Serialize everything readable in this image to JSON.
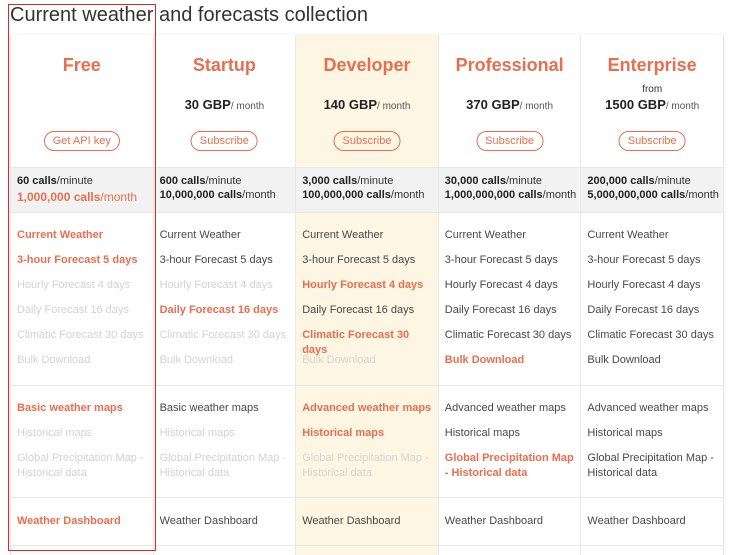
{
  "title": "Current weather and forecasts collection",
  "plans": [
    {
      "name": "Free",
      "button": "Get API key",
      "calls_minute": "60 calls",
      "calls_minute_unit": "/minute",
      "calls_month": "1,000,000 calls",
      "calls_month_unit": "/month",
      "calls_month_style": "highlight",
      "features": [
        {
          "text": "Current Weather",
          "style": "highlight"
        },
        {
          "text": "3-hour Forecast 5 days",
          "style": "highlight"
        },
        {
          "text": "Hourly Forecast 4 days",
          "style": "disabled"
        },
        {
          "text": "Daily Forecast 16 days",
          "style": "disabled"
        },
        {
          "text": "Climatic Forecast 30 days",
          "style": "disabled"
        },
        {
          "text": "Bulk Download",
          "style": "disabled"
        }
      ],
      "maps": [
        {
          "text": "Basic weather maps",
          "style": "highlight"
        },
        {
          "text": "Historical maps",
          "style": "disabled"
        },
        {
          "text": "Global Precipitation Map - Historical data",
          "style": "disabled"
        }
      ],
      "dashboard": {
        "text": "Weather Dashboard",
        "style": "highlight"
      }
    },
    {
      "name": "Startup",
      "price": "30 GBP",
      "price_unit": "/ month",
      "button": "Subscribe",
      "calls_minute": "600 calls",
      "calls_minute_unit": "/minute",
      "calls_month": "10,000,000 calls",
      "calls_month_unit": "/month",
      "calls_month_style": "normal",
      "features": [
        {
          "text": "Current Weather",
          "style": "normal"
        },
        {
          "text": "3-hour Forecast 5 days",
          "style": "normal"
        },
        {
          "text": "Hourly Forecast 4 days",
          "style": "disabled"
        },
        {
          "text": "Daily Forecast 16 days",
          "style": "highlight"
        },
        {
          "text": "Climatic Forecast 30 days",
          "style": "disabled"
        },
        {
          "text": "Bulk Download",
          "style": "disabled"
        }
      ],
      "maps": [
        {
          "text": "Basic weather maps",
          "style": "normal"
        },
        {
          "text": "Historical maps",
          "style": "disabled"
        },
        {
          "text": "Global Precipitation Map - Historical data",
          "style": "disabled"
        }
      ],
      "dashboard": {
        "text": "Weather Dashboard",
        "style": "normal"
      }
    },
    {
      "name": "Developer",
      "price": "140 GBP",
      "price_unit": "/ month",
      "button": "Subscribe",
      "calls_minute": "3,000 calls",
      "calls_minute_unit": "/minute",
      "calls_month": "100,000,000 calls",
      "calls_month_unit": "/month",
      "calls_month_style": "normal",
      "features": [
        {
          "text": "Current Weather",
          "style": "normal"
        },
        {
          "text": "3-hour Forecast 5 days",
          "style": "normal"
        },
        {
          "text": "Hourly Forecast 4 days",
          "style": "highlight"
        },
        {
          "text": "Daily Forecast 16 days",
          "style": "normal"
        },
        {
          "text": "Climatic Forecast 30 days",
          "style": "highlight"
        },
        {
          "text": "Bulk Download",
          "style": "disabled"
        }
      ],
      "maps": [
        {
          "text": "Advanced weather maps",
          "style": "highlight"
        },
        {
          "text": "Historical maps",
          "style": "highlight"
        },
        {
          "text": "Global Precipitation Map - Historical data",
          "style": "disabled"
        }
      ],
      "dashboard": {
        "text": "Weather Dashboard",
        "style": "normal"
      }
    },
    {
      "name": "Professional",
      "price": "370 GBP",
      "price_unit": "/ month",
      "button": "Subscribe",
      "calls_minute": "30,000 calls",
      "calls_minute_unit": "/minute",
      "calls_month": "1,000,000,000 calls",
      "calls_month_unit": "/month",
      "calls_month_style": "normal",
      "features": [
        {
          "text": "Current Weather",
          "style": "normal"
        },
        {
          "text": "3-hour Forecast 5 days",
          "style": "normal"
        },
        {
          "text": "Hourly Forecast 4 days",
          "style": "normal"
        },
        {
          "text": "Daily Forecast 16 days",
          "style": "normal"
        },
        {
          "text": "Climatic Forecast 30 days",
          "style": "normal"
        },
        {
          "text": "Bulk Download",
          "style": "highlight"
        }
      ],
      "maps": [
        {
          "text": "Advanced weather maps",
          "style": "normal"
        },
        {
          "text": "Historical maps",
          "style": "normal"
        },
        {
          "text": "Global Precipitation Map - Historical data",
          "style": "highlight"
        }
      ],
      "dashboard": {
        "text": "Weather Dashboard",
        "style": "normal"
      }
    },
    {
      "name": "Enterprise",
      "from": "from",
      "price": "1500 GBP",
      "price_unit": "/ month",
      "button": "Subscribe",
      "calls_minute": "200,000 calls",
      "calls_minute_unit": "/minute",
      "calls_month": "5,000,000,000 calls",
      "calls_month_unit": "/month",
      "calls_month_style": "normal",
      "features": [
        {
          "text": "Current Weather",
          "style": "normal"
        },
        {
          "text": "3-hour Forecast 5 days",
          "style": "normal"
        },
        {
          "text": "Hourly Forecast 4 days",
          "style": "normal"
        },
        {
          "text": "Daily Forecast 16 days",
          "style": "normal"
        },
        {
          "text": "Climatic Forecast 30 days",
          "style": "normal"
        },
        {
          "text": "Bulk Download",
          "style": "normal"
        }
      ],
      "maps": [
        {
          "text": "Advanced weather maps",
          "style": "normal"
        },
        {
          "text": "Historical maps",
          "style": "normal"
        },
        {
          "text": "Global Precipitation Map - Historical data",
          "style": "normal"
        }
      ],
      "dashboard": {
        "text": "Weather Dashboard",
        "style": "normal"
      }
    }
  ]
}
